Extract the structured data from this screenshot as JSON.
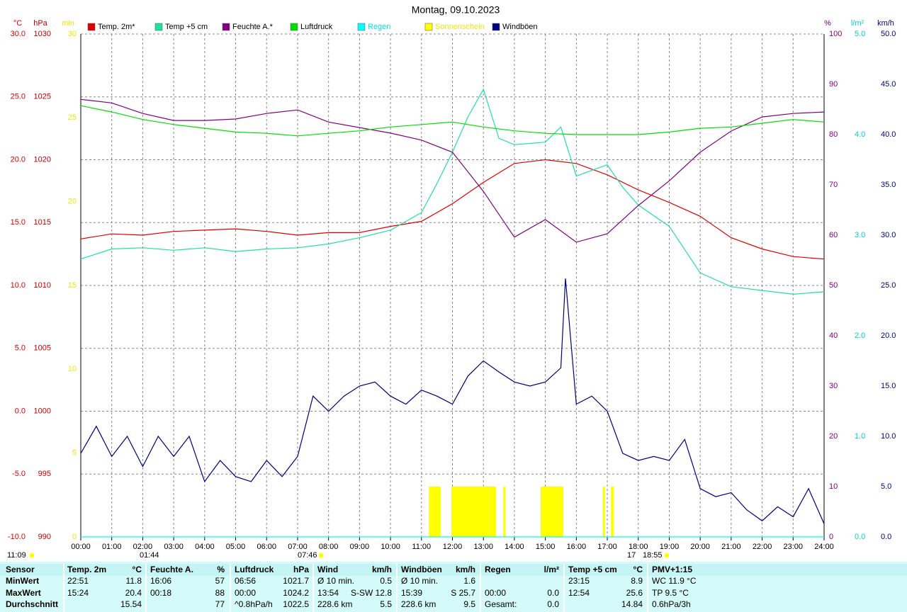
{
  "chart_data": {
    "type": "line",
    "title": "Montag, 09.10.2023",
    "xlim": [
      0,
      24
    ],
    "xticks": [
      {
        "value": 0,
        "label": "00:00"
      },
      {
        "value": 1,
        "label": "01:00"
      },
      {
        "value": 2,
        "label": "02:00"
      },
      {
        "value": 3,
        "label": "03:00"
      },
      {
        "value": 4,
        "label": "04:00"
      },
      {
        "value": 5,
        "label": "05:00"
      },
      {
        "value": 6,
        "label": "06:00"
      },
      {
        "value": 7,
        "label": "07:00"
      },
      {
        "value": 8,
        "label": "08:00"
      },
      {
        "value": 9,
        "label": "09:00"
      },
      {
        "value": 10,
        "label": "10:00"
      },
      {
        "value": 11,
        "label": "11:00"
      },
      {
        "value": 12,
        "label": "12:00"
      },
      {
        "value": 13,
        "label": "13:00"
      },
      {
        "value": 14,
        "label": "14:00"
      },
      {
        "value": 15,
        "label": "15:00"
      },
      {
        "value": 16,
        "label": "16:00"
      },
      {
        "value": 17,
        "label": "17:00"
      },
      {
        "value": 18,
        "label": "18:00"
      },
      {
        "value": 19,
        "label": "19:00"
      },
      {
        "value": 20,
        "label": "20:00"
      },
      {
        "value": 21,
        "label": "21:00"
      },
      {
        "value": 22,
        "label": "22:00"
      },
      {
        "value": 23,
        "label": "23:00"
      },
      {
        "value": 24,
        "label": "24:00"
      }
    ],
    "grid": true,
    "axes": [
      {
        "label": "°C",
        "color": "#e00000",
        "lim": [
          -10,
          30
        ],
        "ticks": [
          {
            "value": -10,
            "label": "-10.0"
          },
          {
            "value": -5,
            "label": "-5.0"
          },
          {
            "value": 0,
            "label": "0.0"
          },
          {
            "value": 5,
            "label": "5.0"
          },
          {
            "value": 10,
            "label": "10.0"
          },
          {
            "value": 15,
            "label": "15.0"
          },
          {
            "value": 20,
            "label": "20.0"
          },
          {
            "value": 25,
            "label": "25.0"
          },
          {
            "value": 30,
            "label": "30.0"
          }
        ]
      },
      {
        "label": "hPa",
        "color": "#c00000",
        "lim": [
          990,
          1030
        ],
        "ticks": [
          990,
          995,
          1000,
          1005,
          1010,
          1015,
          1020,
          1025,
          1030
        ]
      },
      {
        "label": "min",
        "color": "#e8e800",
        "lim": [
          0,
          30
        ],
        "ticks": [
          0,
          5,
          10,
          15,
          20,
          25,
          30
        ]
      },
      {
        "label": "%",
        "color": "#800080",
        "lim": [
          0,
          100
        ],
        "ticks": [
          0,
          10,
          20,
          30,
          40,
          50,
          60,
          70,
          80,
          90,
          100
        ]
      },
      {
        "label": "l/m²",
        "color": "#00d0d0",
        "lim": [
          0,
          5
        ],
        "ticks": [
          {
            "value": 0,
            "label": "0.0"
          },
          {
            "value": 1,
            "label": "1.0"
          },
          {
            "value": 2,
            "label": "2.0"
          },
          {
            "value": 3,
            "label": "3.0"
          },
          {
            "value": 4,
            "label": "4.0"
          },
          {
            "value": 5,
            "label": "5.0"
          }
        ]
      },
      {
        "label": "km/h",
        "color": "#000080",
        "lim": [
          0,
          50
        ],
        "ticks": [
          {
            "value": 0,
            "label": "0.0"
          },
          {
            "value": 5,
            "label": "5.0"
          },
          {
            "value": 10,
            "label": "10.0"
          },
          {
            "value": 15,
            "label": "15.0"
          },
          {
            "value": 20,
            "label": "20.0"
          },
          {
            "value": 25,
            "label": "25.0"
          },
          {
            "value": 30,
            "label": "30.0"
          },
          {
            "value": 35,
            "label": "35.0"
          },
          {
            "value": 40,
            "label": "40.0"
          },
          {
            "value": 45,
            "label": "45.0"
          },
          {
            "value": 50,
            "label": "50.0"
          }
        ]
      }
    ],
    "series": [
      {
        "name": "Temp. 2m*",
        "color": "#e00000",
        "axis": "°C",
        "x": [
          0,
          1,
          2,
          3,
          4,
          5,
          6,
          7,
          8,
          9,
          10,
          11,
          12,
          13,
          14,
          15,
          16,
          17,
          18,
          19,
          20,
          21,
          22,
          23,
          24
        ],
        "values": [
          13.7,
          14.1,
          14.0,
          14.3,
          14.4,
          14.5,
          14.3,
          14.0,
          14.2,
          14.2,
          14.7,
          15.1,
          16.5,
          18.2,
          19.7,
          20.0,
          19.7,
          18.8,
          17.6,
          16.6,
          15.5,
          13.8,
          12.9,
          12.3,
          12.1
        ]
      },
      {
        "name": "Temp +5 cm",
        "color": "#20e0a0",
        "axis": "°C",
        "x": [
          0,
          1,
          2,
          3,
          4,
          5,
          6,
          7,
          8,
          9,
          10,
          11,
          11.5,
          12,
          12.5,
          13,
          13.5,
          14,
          15,
          15.5,
          16,
          17,
          17.5,
          18,
          19,
          20,
          21,
          22,
          23,
          24
        ],
        "values": [
          12.1,
          12.9,
          13.0,
          12.8,
          13.0,
          12.7,
          12.9,
          13.0,
          13.3,
          13.8,
          14.4,
          15.8,
          18.1,
          20.6,
          23.4,
          25.6,
          21.7,
          21.2,
          21.4,
          22.6,
          18.7,
          19.6,
          17.8,
          16.4,
          14.7,
          11.0,
          9.9,
          9.6,
          9.3,
          9.5
        ]
      },
      {
        "name": "Feuchte A.*",
        "color": "#800080",
        "axis": "%",
        "x": [
          0,
          1,
          2,
          3,
          4,
          5,
          6,
          7,
          8,
          9,
          10,
          11,
          12,
          13,
          14,
          15,
          16,
          17,
          18,
          19,
          20,
          21,
          22,
          23,
          24
        ],
        "values": [
          87,
          86.3,
          84.2,
          82.8,
          82.8,
          83.1,
          84.2,
          84.9,
          82.5,
          81.4,
          80.3,
          78.9,
          76.5,
          68.7,
          59.6,
          63.1,
          58.6,
          60.3,
          65.9,
          70.8,
          76.5,
          80.7,
          83.5,
          84.2,
          84.5
        ]
      },
      {
        "name": "Luftdruck",
        "color": "#00e000",
        "axis": "hPa",
        "x": [
          0,
          1,
          2,
          3,
          4,
          5,
          6,
          7,
          8,
          9,
          10,
          11,
          12,
          13,
          14,
          15,
          16,
          17,
          18,
          19,
          20,
          21,
          22,
          23,
          24
        ],
        "values": [
          1024.3,
          1023.8,
          1023.2,
          1022.8,
          1022.5,
          1022.2,
          1022.1,
          1021.9,
          1022.1,
          1022.3,
          1022.6,
          1022.8,
          1023.0,
          1022.6,
          1022.3,
          1022.1,
          1022.0,
          1022.0,
          1022.0,
          1022.2,
          1022.5,
          1022.6,
          1022.9,
          1023.2,
          1023.0
        ]
      },
      {
        "name": "Regen",
        "color": "#00ffff",
        "legend_label_color": "#00e0e0",
        "axis": "l/m²",
        "x": [
          0,
          24
        ],
        "values": [
          0,
          0
        ]
      },
      {
        "name": "Sonnenschein",
        "color": "#ffff00",
        "legend_label_color": "#e8e800",
        "axis": "min",
        "type": "bar",
        "x": [
          11.24,
          11.97,
          13.64,
          14.85,
          16.86,
          17.12
        ],
        "x_end": [
          11.62,
          13.41,
          13.71,
          15.58,
          16.93,
          17.21
        ],
        "values": [
          3,
          3,
          3,
          3,
          3,
          3
        ]
      },
      {
        "name": "Windböen",
        "color": "#000080",
        "axis": "km/h",
        "x": [
          0,
          0.5,
          1,
          1.5,
          2,
          2.5,
          3,
          3.5,
          4,
          4.5,
          5,
          5.5,
          6,
          6.5,
          7,
          7.5,
          8,
          8.5,
          9,
          9.5,
          10,
          10.5,
          11,
          11.5,
          12,
          12.5,
          13,
          13.5,
          14,
          14.5,
          15,
          15.5,
          15.65,
          16,
          16.5,
          17,
          17.5,
          18,
          18.5,
          19,
          19.5,
          20,
          20.5,
          21,
          21.5,
          22,
          22.5,
          23,
          23.5,
          24
        ],
        "values": [
          8.3,
          11,
          8,
          10,
          7,
          10,
          8,
          10,
          5.5,
          7.6,
          6,
          5.5,
          7.6,
          6,
          8,
          14,
          12.5,
          14,
          15,
          15.4,
          14,
          13.2,
          14.6,
          14,
          13.2,
          16,
          17.5,
          16.4,
          15.4,
          15,
          15.4,
          16.8,
          25.7,
          13.2,
          14,
          12.5,
          8.3,
          7.6,
          8,
          7.6,
          9.7,
          4.8,
          4,
          4.4,
          2.7,
          1.6,
          3,
          2,
          4.8,
          1.3
        ]
      }
    ],
    "annotations": [
      "11:09",
      "01:44",
      "07:46",
      "17",
      "18:55"
    ],
    "table": {
      "header": [
        "Sensor",
        "Temp. 2m",
        "°C",
        "Feuchte A.",
        "%",
        "Luftdruck",
        "hPa",
        "Wind",
        "km/h",
        "Windböen",
        "km/h",
        "Regen",
        "l/m²",
        "Temp +5 cm",
        "°C",
        "PMV+1:15"
      ],
      "rows": [
        [
          "MinWert",
          "22:51",
          "11.8",
          "16:06",
          "57",
          "06:56",
          "1021.7",
          "Ø 10 min.",
          "0.5",
          "Ø 10 min.",
          "1.6",
          null,
          null,
          "23:15",
          "8.9",
          "WC 11.9 °C"
        ],
        [
          "MaxWert",
          "15:24",
          "20.4",
          "00:18",
          "88",
          "00:00",
          "1024.2",
          "13:54",
          "S-SW 12.8",
          "15:39",
          "S 25.7",
          "00:00",
          "0.0",
          "12:54",
          "25.6",
          "TP 9.5 °C"
        ],
        [
          "Durchschnitt",
          null,
          "15.54",
          null,
          "77",
          "^0.8hPa/h",
          "1022.5",
          "228.6 km",
          "5.5",
          "228.6 km",
          "9.5",
          "Gesamt:",
          "0.0",
          null,
          "14.84",
          "0.6hPa/3h"
        ]
      ]
    }
  }
}
